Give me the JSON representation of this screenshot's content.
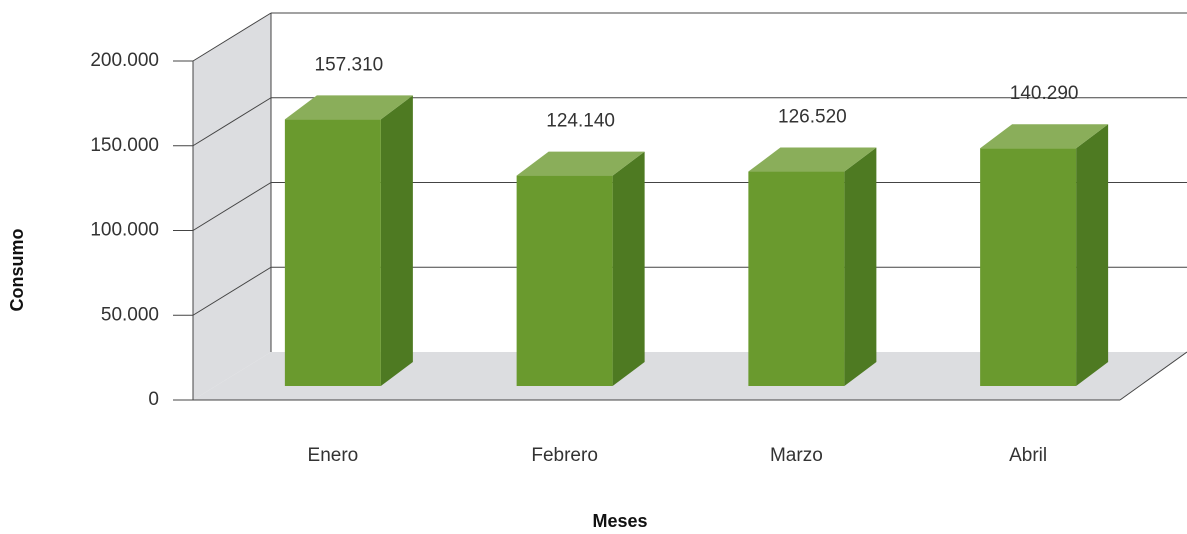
{
  "chart_data": {
    "type": "bar3d",
    "xlabel": "Meses",
    "ylabel": "Consumo",
    "categories": [
      "Enero",
      "Febrero",
      "Marzo",
      "Abril"
    ],
    "values": [
      157310,
      124140,
      126520,
      140290
    ],
    "value_labels": [
      "157.310",
      "124.140",
      "126.520",
      "140.290"
    ],
    "color": "#6a9a2e",
    "ylim": [
      0,
      200000
    ],
    "yticks": [
      0,
      {
        "value": 50000,
        "label": "50.000"
      },
      {
        "value": 100000,
        "label": "100.000"
      },
      {
        "value": 150000,
        "label": "150.000"
      },
      {
        "value": 200000,
        "label": "200.000"
      }
    ],
    "grid": true
  }
}
